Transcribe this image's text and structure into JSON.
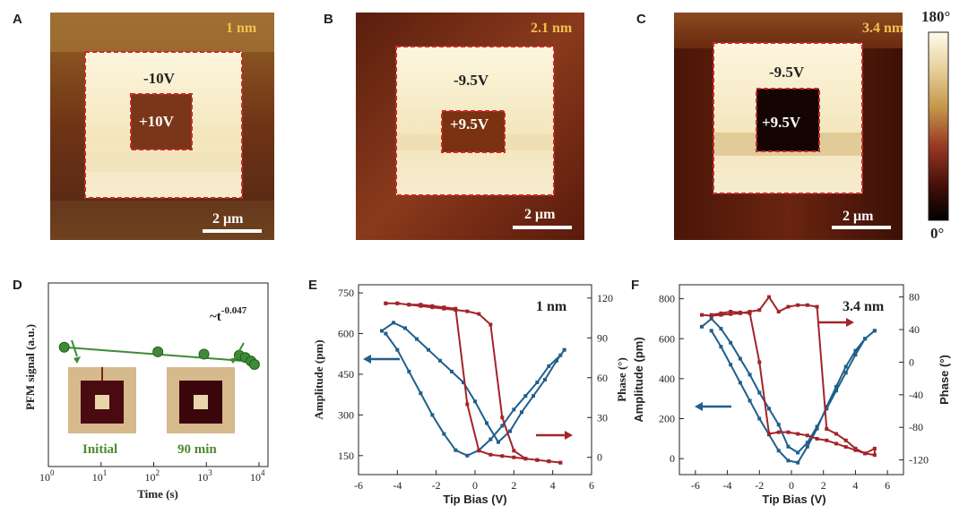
{
  "colors": {
    "blue": "#1f5f8b",
    "red": "#a3242a",
    "green": "#3f8a36",
    "dashed_box": "#d1262b"
  },
  "top_panels": [
    {
      "label": "A",
      "thickness": "1 nm",
      "outer_voltage": "-10V",
      "inner_voltage": "+10V",
      "scale_bar": "2 μm"
    },
    {
      "label": "B",
      "thickness": "2.1 nm",
      "outer_voltage": "-9.5V",
      "inner_voltage": "+9.5V",
      "scale_bar": "2 μm"
    },
    {
      "label": "C",
      "thickness": "3.4 nm",
      "outer_voltage": "-9.5V",
      "inner_voltage": "+9.5V",
      "scale_bar": "2 μm"
    }
  ],
  "colorbar": {
    "max_label": "180°",
    "min_label": "0°"
  },
  "panel_labels": {
    "D": "D",
    "E": "E",
    "F": "F"
  },
  "inset_labels": {
    "initial": "Initial",
    "final": "90 min"
  },
  "chart_data": [
    {
      "type": "scatter",
      "panel": "D",
      "xlabel": "Time (s)",
      "ylabel": "PFM signal (a.u.)",
      "xscale": "log",
      "xlim": [
        1,
        10000
      ],
      "x_ticks": [
        "10^0",
        "10^1",
        "10^2",
        "10^3",
        "10^4"
      ],
      "annotation": "~t^-0.047",
      "annotation_base": "~t",
      "annotation_exp": "-0.047",
      "points": [
        {
          "x": 2,
          "y": 0.72
        },
        {
          "x": 120,
          "y": 0.7
        },
        {
          "x": 900,
          "y": 0.69
        },
        {
          "x": 4200,
          "y": 0.685
        },
        {
          "x": 5500,
          "y": 0.675
        },
        {
          "x": 7000,
          "y": 0.66
        },
        {
          "x": 8200,
          "y": 0.645
        }
      ],
      "fit": {
        "x": [
          2,
          10000
        ],
        "y": [
          0.72,
          0.655
        ]
      }
    },
    {
      "type": "line",
      "panel": "E",
      "title": "1 nm",
      "xlabel": "Tip Bias (V)",
      "ylabel_left": "Amplitude (pm)",
      "ylabel_right": "Phase (°)",
      "xlim": [
        -6,
        6
      ],
      "ylim_left": [
        80,
        780
      ],
      "ylim_right": [
        -13,
        130
      ],
      "x_ticks": [
        -6,
        -4,
        -2,
        0,
        2,
        4,
        6
      ],
      "y_left_ticks": [
        150,
        300,
        450,
        600,
        750
      ],
      "y_right_ticks": [
        0,
        30,
        60,
        90,
        120
      ],
      "series": [
        {
          "axis": "left",
          "color": "#1f5f8b",
          "x": [
            -4.8,
            -4.2,
            -3.6,
            -3.0,
            -2.4,
            -1.8,
            -1.2,
            -0.6,
            0.0,
            0.6,
            1.2,
            1.8,
            2.4,
            3.0,
            3.6,
            4.2,
            4.6,
            4.4,
            3.8,
            3.2,
            2.6,
            2.0,
            1.4,
            0.8,
            0.2,
            -0.4,
            -1.0,
            -1.6,
            -2.2,
            -2.8,
            -3.4,
            -4.0,
            -4.6
          ],
          "y": [
            610,
            640,
            620,
            580,
            540,
            500,
            460,
            420,
            350,
            270,
            200,
            240,
            310,
            370,
            430,
            500,
            540,
            520,
            480,
            420,
            370,
            320,
            260,
            210,
            170,
            150,
            170,
            230,
            300,
            380,
            460,
            540,
            600
          ]
        },
        {
          "axis": "right",
          "color": "#a3242a",
          "x": [
            -4.6,
            -4.0,
            -3.4,
            -2.8,
            -2.2,
            -1.6,
            -1.0,
            -0.4,
            0.2,
            0.8,
            1.4,
            2.0,
            2.6,
            3.2,
            3.8,
            4.4,
            4.4,
            3.8,
            3.2,
            2.6,
            2.0,
            1.4,
            0.8,
            0.2,
            -0.4,
            -1.0,
            -1.6,
            -2.2,
            -2.8,
            -3.4,
            -4.0,
            -4.6
          ],
          "y": [
            116,
            116,
            115,
            115,
            114,
            113,
            112,
            40,
            5,
            2,
            1,
            0,
            -1,
            -2,
            -3,
            -4,
            -4,
            -3,
            -2,
            -1,
            5,
            30,
            100,
            108,
            110,
            111,
            112,
            113,
            114,
            115,
            116,
            116
          ]
        }
      ]
    },
    {
      "type": "line",
      "panel": "F",
      "title": "3.4 nm",
      "xlabel": "Tip Bias (V)",
      "ylabel_left": "Amplitude (pm)",
      "ylabel_right": "Phase (°)",
      "xlim": [
        -7,
        7
      ],
      "ylim_left": [
        -80,
        870
      ],
      "ylim_right": [
        -138,
        95
      ],
      "x_ticks": [
        -6,
        -4,
        -2,
        0,
        2,
        4,
        6
      ],
      "y_left_ticks": [
        0,
        200,
        400,
        600,
        800
      ],
      "y_right_ticks": [
        -120,
        -80,
        -40,
        0,
        40,
        80
      ],
      "series": [
        {
          "axis": "left",
          "color": "#1f5f8b",
          "x": [
            -5.6,
            -5.0,
            -4.4,
            -3.8,
            -3.2,
            -2.6,
            -2.0,
            -1.4,
            -0.8,
            -0.2,
            0.4,
            1.0,
            1.6,
            2.2,
            2.8,
            3.4,
            4.0,
            4.6,
            5.2,
            5.2,
            4.6,
            4.0,
            3.4,
            2.8,
            2.2,
            1.6,
            1.0,
            0.4,
            -0.2,
            -0.8,
            -1.4,
            -2.0,
            -2.6,
            -3.2,
            -3.8,
            -4.4,
            -5.0
          ],
          "y": [
            660,
            700,
            650,
            580,
            500,
            420,
            330,
            250,
            170,
            60,
            30,
            80,
            160,
            250,
            340,
            430,
            520,
            600,
            640,
            640,
            600,
            540,
            460,
            360,
            260,
            150,
            60,
            -20,
            -10,
            40,
            120,
            200,
            290,
            380,
            470,
            560,
            640
          ]
        },
        {
          "axis": "right",
          "color": "#a3242a",
          "x": [
            -5.6,
            -5.0,
            -4.4,
            -3.8,
            -3.2,
            -2.6,
            -2.0,
            -1.4,
            -0.8,
            -0.2,
            0.4,
            1.0,
            1.6,
            2.2,
            2.8,
            3.4,
            4.0,
            4.6,
            5.2,
            5.2,
            4.6,
            4.0,
            3.4,
            2.8,
            2.2,
            1.6,
            1.0,
            0.4,
            -0.2,
            -0.8,
            -1.4,
            -2.0,
            -2.6,
            -3.2,
            -3.8,
            -4.4,
            -5.0
          ],
          "y": [
            58,
            57,
            58,
            59,
            60,
            62,
            64,
            80,
            62,
            68,
            70,
            70,
            68,
            -82,
            -88,
            -96,
            -106,
            -112,
            -114,
            -106,
            -112,
            -108,
            -104,
            -100,
            -96,
            -94,
            -90,
            -88,
            -86,
            -86,
            -88,
            0,
            60,
            61,
            62,
            60,
            58
          ]
        }
      ]
    }
  ]
}
